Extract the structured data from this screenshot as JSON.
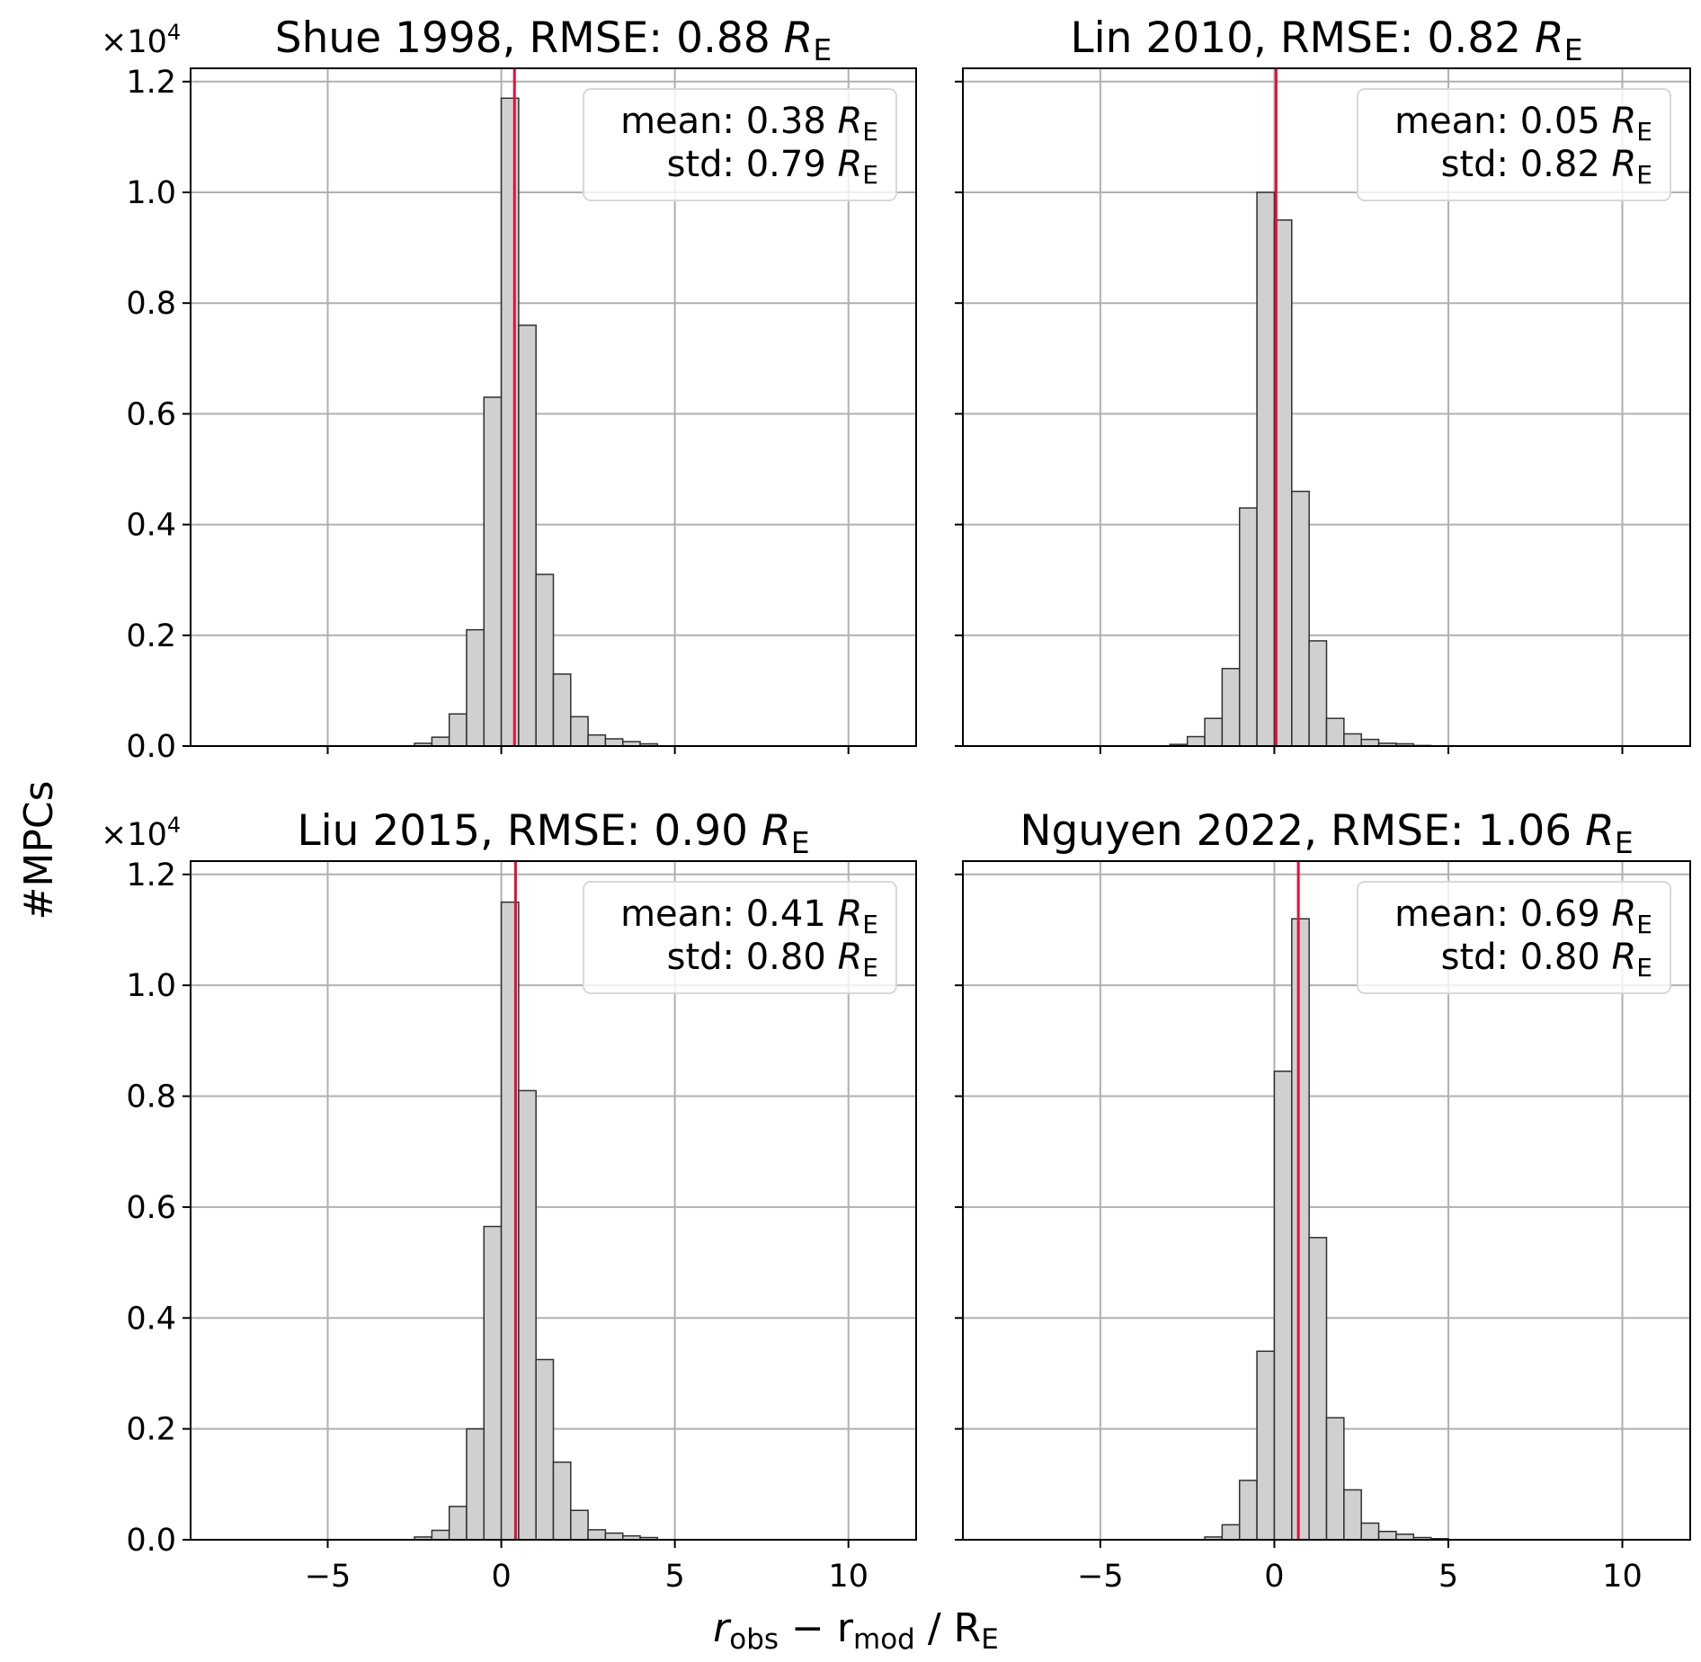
{
  "chart_data": {
    "type": "bar",
    "layout": "2x2 histograms, shared axes",
    "xlabel": {
      "main": "r",
      "sub1": "obs",
      "minus": " − r",
      "sub2": "mod",
      "rest": " / R",
      "sub3": "E"
    },
    "ylabel": "#MPCs",
    "y_multiplier": "×10",
    "y_multiplier_exp": "4",
    "xlim": [
      -8.95,
      11.95
    ],
    "ylim": [
      0,
      1.224
    ],
    "xticks": [
      -5,
      0,
      5,
      10
    ],
    "xtick_labels": [
      "−5",
      "0",
      "5",
      "10"
    ],
    "yticks": [
      0,
      0.2,
      0.4,
      0.6,
      0.8,
      1.0,
      1.2
    ],
    "ytick_labels": [
      "0.0",
      "0.2",
      "0.4",
      "0.6",
      "0.8",
      "1.0",
      "1.2"
    ],
    "bin_width": 0.5,
    "grid": true,
    "bar_color": "#d0d0d0",
    "mean_line_color": "#e0103a",
    "legend_position": "top-right",
    "panels": [
      {
        "title": "Shue 1998, RMSE: 0.88 ",
        "title_unit": "R",
        "title_sub": "E",
        "mean_label": "mean: 0.38 ",
        "std_label": "std: 0.79 ",
        "unit": "R",
        "unit_sub": "E",
        "mean": 0.38,
        "bin_start": -2.5,
        "values": [
          0.005,
          0.016,
          0.058,
          0.21,
          0.63,
          1.17,
          0.76,
          0.31,
          0.13,
          0.053,
          0.02,
          0.013,
          0.008,
          0.004
        ]
      },
      {
        "title": "Lin 2010, RMSE: 0.82 ",
        "title_unit": "R",
        "title_sub": "E",
        "mean_label": "mean: 0.05 ",
        "std_label": "std: 0.82 ",
        "unit": "R",
        "unit_sub": "E",
        "mean": 0.05,
        "bin_start": -3.0,
        "values": [
          0.003,
          0.017,
          0.05,
          0.14,
          0.43,
          1.0,
          0.95,
          0.46,
          0.19,
          0.05,
          0.022,
          0.012,
          0.005,
          0.004,
          0.001
        ]
      },
      {
        "title": "Liu 2015, RMSE: 0.90 ",
        "title_unit": "R",
        "title_sub": "E",
        "mean_label": "mean: 0.41 ",
        "std_label": "std: 0.80 ",
        "unit": "R",
        "unit_sub": "E",
        "mean": 0.41,
        "bin_start": -2.5,
        "values": [
          0.005,
          0.017,
          0.06,
          0.2,
          0.565,
          1.15,
          0.81,
          0.325,
          0.14,
          0.053,
          0.018,
          0.012,
          0.007,
          0.004
        ]
      },
      {
        "title": "Nguyen 2022, RMSE: 1.06 ",
        "title_unit": "R",
        "title_sub": "E",
        "mean_label": "mean: 0.69 ",
        "std_label": "std: 0.80 ",
        "unit": "R",
        "unit_sub": "E",
        "mean": 0.69,
        "bin_start": -2.0,
        "values": [
          0.005,
          0.027,
          0.107,
          0.34,
          0.845,
          1.12,
          0.545,
          0.22,
          0.09,
          0.03,
          0.015,
          0.01,
          0.004,
          0.002
        ]
      }
    ]
  }
}
